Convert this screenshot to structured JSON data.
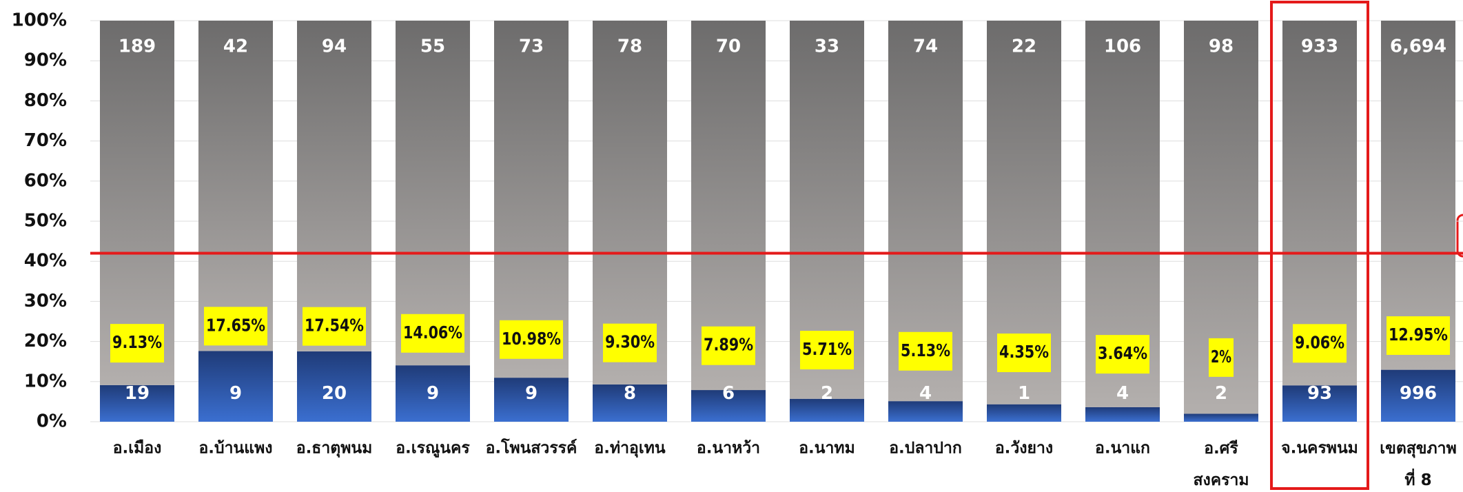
{
  "chart_data": {
    "type": "bar",
    "stacking": "percent",
    "categories": [
      "อ.เมือง",
      "อ.บ้านแพง",
      "อ.ธาตุพนม",
      "อ.เรณูนคร",
      "อ.โพนสวรรค์",
      "อ.ท่าอุเทน",
      "อ.นาหว้า",
      "อ.นาทม",
      "อ.ปลาปาก",
      "อ.วังยาง",
      "อ.นาแก",
      "อ.ศรี\nสงคราม",
      "จ.นครพนม",
      "เขตสุขภาพ\nที่ 8"
    ],
    "series": [
      {
        "color": "#2c56a8",
        "values": [
          19,
          9,
          20,
          9,
          9,
          8,
          6,
          2,
          4,
          1,
          4,
          2,
          93,
          996
        ]
      },
      {
        "color": "#8a8888",
        "values": [
          189,
          42,
          94,
          55,
          73,
          78,
          70,
          33,
          74,
          22,
          106,
          98,
          933,
          6694
        ],
        "value_labels": [
          "189",
          "42",
          "94",
          "55",
          "73",
          "78",
          "70",
          "33",
          "74",
          "22",
          "106",
          "98",
          "933",
          "6,694"
        ]
      }
    ],
    "share_labels": [
      "9.13%",
      "17.65%",
      "17.54%",
      "14.06%",
      "10.98%",
      "9.30%",
      "7.89%",
      "5.71%",
      "5.13%",
      "4.35%",
      "3.64%",
      "2%",
      "9.06%",
      "12.95%"
    ],
    "ylim": [
      0,
      100
    ],
    "yticks": [
      {
        "value": 0,
        "label": "0%"
      },
      {
        "value": 10,
        "label": "10%"
      },
      {
        "value": 20,
        "label": "20%"
      },
      {
        "value": 30,
        "label": "30%"
      },
      {
        "value": 40,
        "label": "40%"
      },
      {
        "value": 50,
        "label": "50%"
      },
      {
        "value": 60,
        "label": "60%"
      },
      {
        "value": 70,
        "label": "70%"
      },
      {
        "value": 80,
        "label": "80%"
      },
      {
        "value": 90,
        "label": "90%"
      },
      {
        "value": 100,
        "label": "100%"
      }
    ],
    "grid": true,
    "reference_line": 42,
    "reference_color": "#e41a1a",
    "highlight": 12
  }
}
